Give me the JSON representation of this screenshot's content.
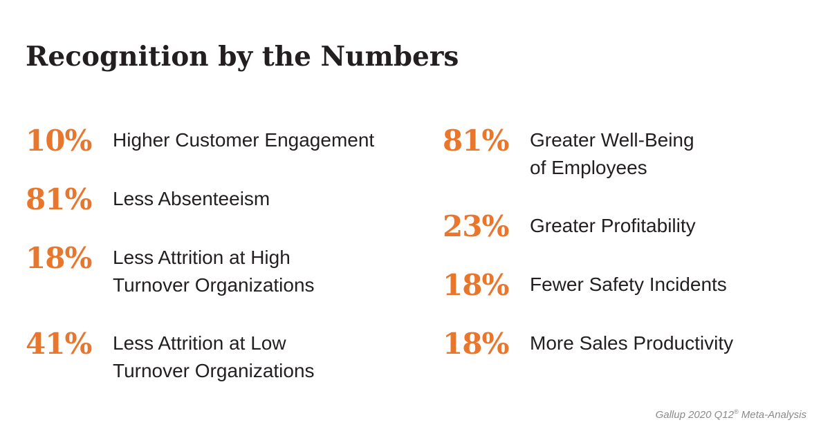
{
  "title": "Recognition by the Numbers",
  "left_stats": [
    {
      "value": "10%",
      "lines": [
        "Higher Customer Engagement"
      ]
    },
    {
      "value": "81%",
      "lines": [
        "Less Absenteeism"
      ]
    },
    {
      "value": "18%",
      "lines": [
        "Less Attrition at High",
        "Turnover Organizations"
      ]
    },
    {
      "value": "41%",
      "lines": [
        "Less Attrition at Low",
        "Turnover Organizations"
      ]
    }
  ],
  "right_stats": [
    {
      "value": "81%",
      "lines": [
        "Greater Well-Being",
        "of Employees"
      ]
    },
    {
      "value": "23%",
      "lines": [
        "Greater Profitability"
      ]
    },
    {
      "value": "18%",
      "lines": [
        "Fewer Safety Incidents"
      ]
    },
    {
      "value": "18%",
      "lines": [
        "More Sales Productivity"
      ]
    }
  ],
  "source": {
    "prefix": "Gallup 2020 Q12",
    "mark": "®",
    "suffix": " Meta-Analysis"
  },
  "colors": {
    "accent": "#e8762c",
    "text": "#231f20",
    "source": "#8a8a8a"
  }
}
